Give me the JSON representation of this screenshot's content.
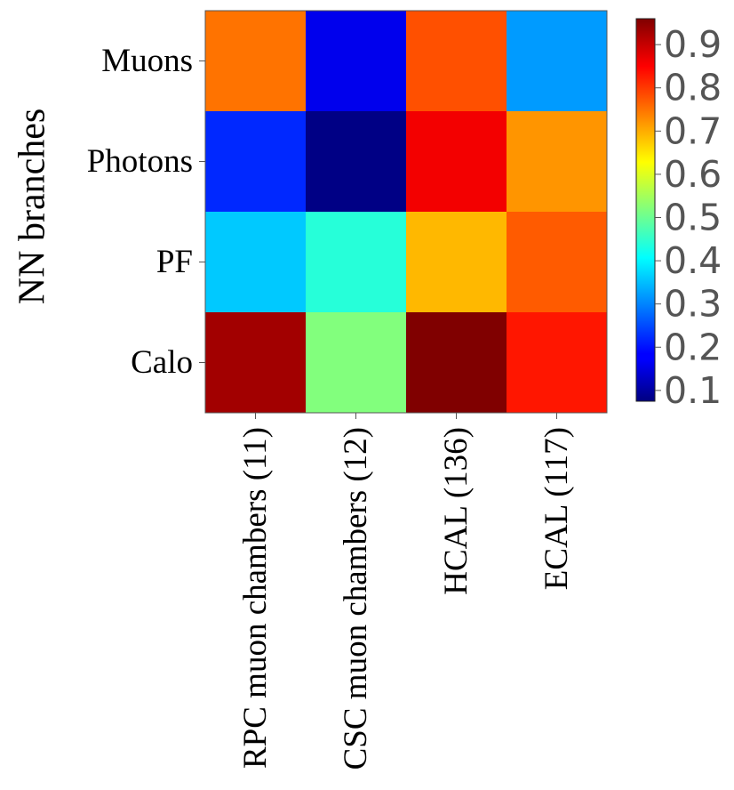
{
  "chart_data": {
    "type": "heatmap",
    "ylabel": "NN branches",
    "xlabel": "",
    "rows": [
      "Muons",
      "Photons",
      "PF",
      "Calo"
    ],
    "columns": [
      "RPC muon chambers  (11)",
      "CSC muon chambers  (12)",
      "HCAL (136)",
      "ECAL (117)"
    ],
    "values": [
      [
        0.75,
        0.17,
        0.78,
        0.32
      ],
      [
        0.22,
        0.08,
        0.86,
        0.72
      ],
      [
        0.36,
        0.44,
        0.69,
        0.77
      ],
      [
        0.93,
        0.52,
        0.97,
        0.83
      ]
    ],
    "colormap": "jet",
    "vmin": 0.075,
    "vmax": 0.96,
    "colorbar_ticks": [
      "0.1",
      "0.2",
      "0.3",
      "0.4",
      "0.5",
      "0.6",
      "0.7",
      "0.8",
      "0.9"
    ],
    "colorbar_tick_color": "#555555"
  }
}
